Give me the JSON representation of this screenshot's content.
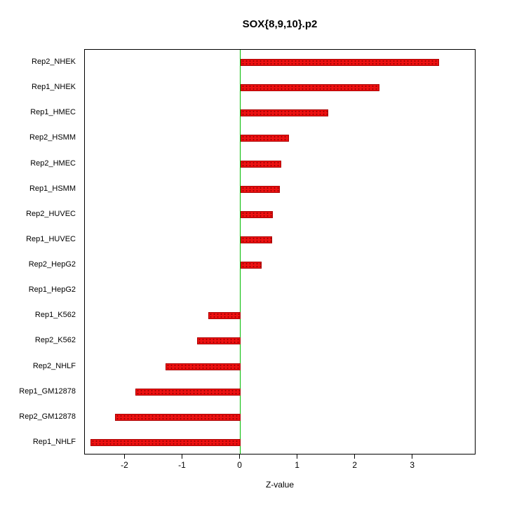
{
  "title": "SOX{8,9,10}.p2",
  "chart_data": {
    "type": "bar",
    "orientation": "horizontal",
    "title": "SOX{8,9,10}.p2",
    "xlabel": "Z-value",
    "ylabel": "",
    "categories": [
      "Rep2_NHEK",
      "Rep1_NHEK",
      "Rep1_HMEC",
      "Rep2_HSMM",
      "Rep2_HMEC",
      "Rep1_HSMM",
      "Rep2_HUVEC",
      "Rep1_HUVEC",
      "Rep2_HepG2",
      "Rep1_HepG2",
      "Rep1_K562",
      "Rep2_K562",
      "Rep2_NHLF",
      "Rep1_GM12878",
      "Rep2_GM12878",
      "Rep1_NHLF"
    ],
    "values": [
      3.45,
      2.42,
      1.53,
      0.85,
      0.71,
      0.69,
      0.57,
      0.55,
      0.37,
      0.0,
      -0.55,
      -0.75,
      -1.3,
      -1.82,
      -2.18,
      -2.6
    ],
    "xticks": [
      -2,
      -1,
      0,
      1,
      2,
      3
    ],
    "xlim": [
      -2.7,
      4.1
    ],
    "grid": false,
    "legend": "none",
    "bar_color": "#ee1111",
    "bar_border_color": "#aa0000",
    "zero_line_color": "#00bb00"
  }
}
